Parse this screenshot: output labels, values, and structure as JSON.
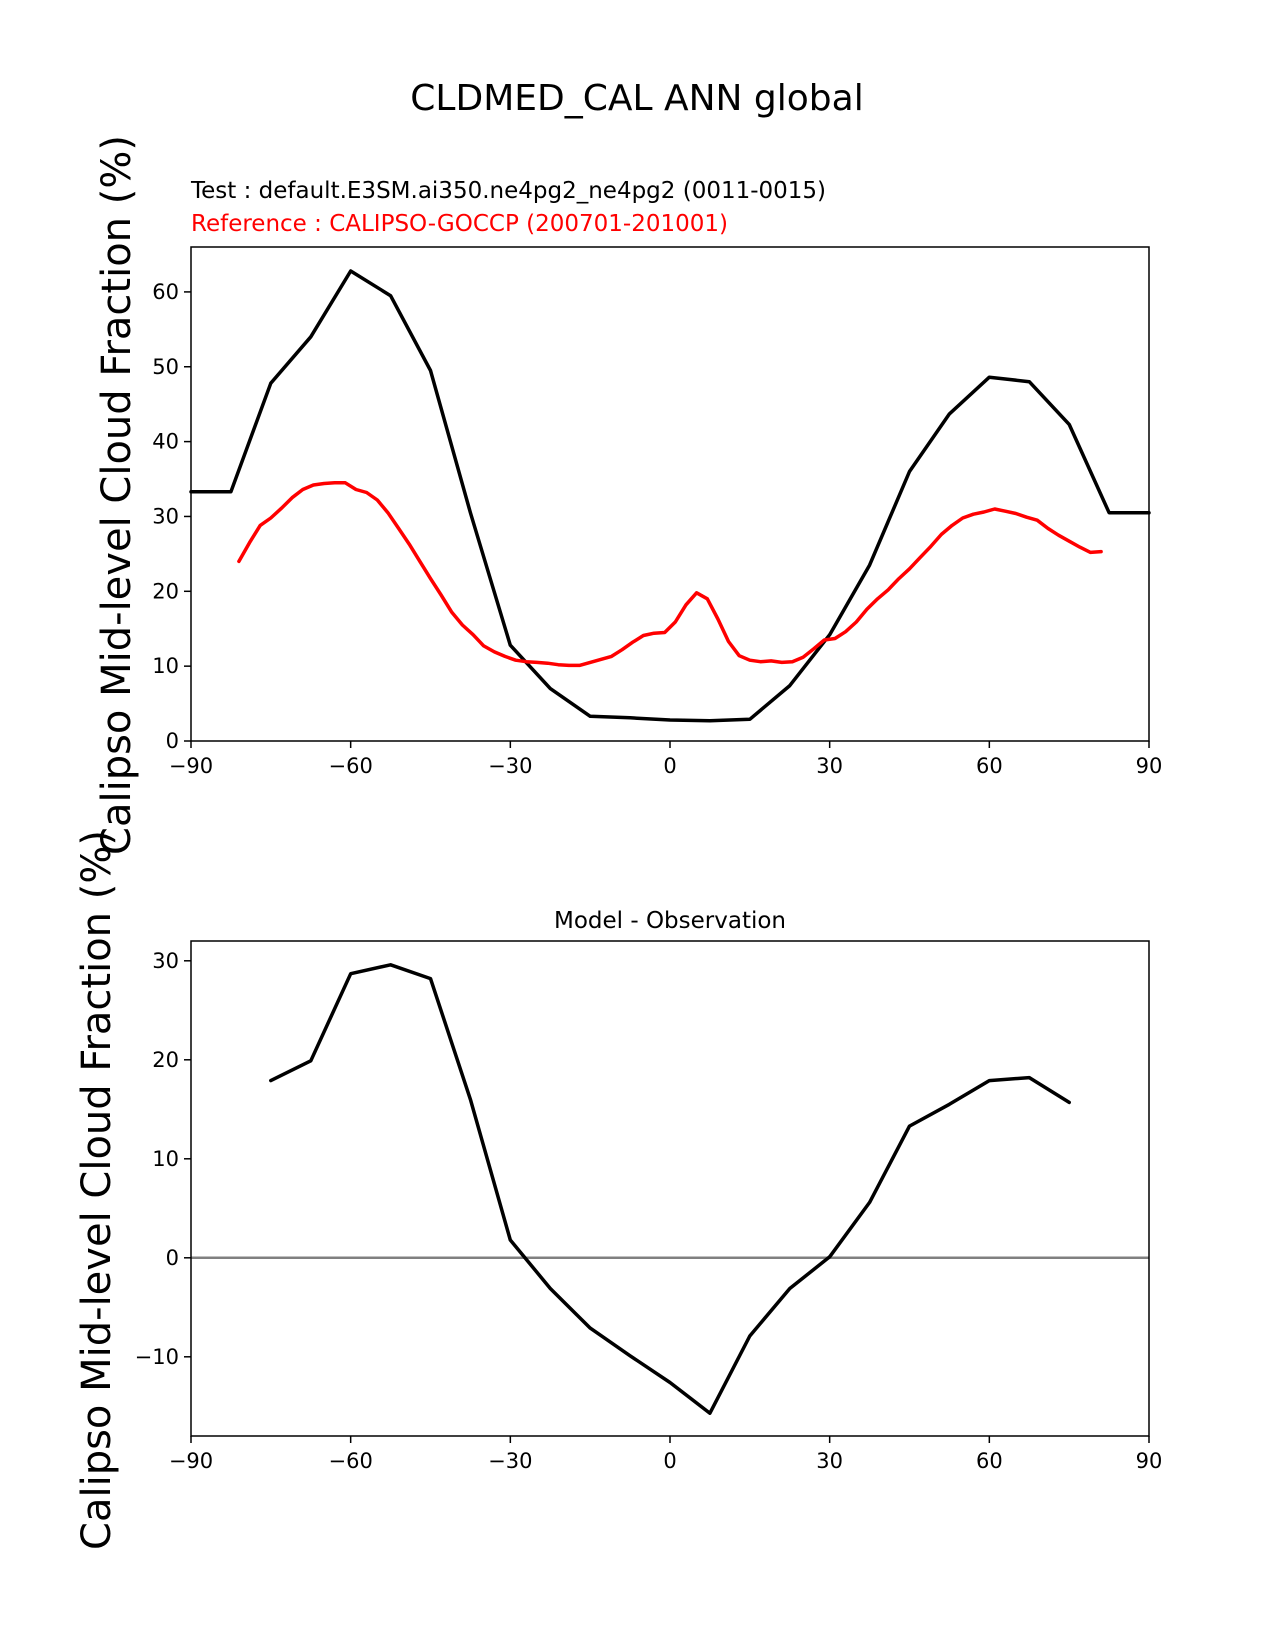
{
  "figure": {
    "title": "CLDMED_CAL ANN global"
  },
  "chart_data": [
    {
      "type": "line",
      "test_label": "Test : default.E3SM.ai350.ne4pg2_ne4pg2 (0011-0015)",
      "reference_label": "Reference : CALIPSO-GOCCP (200701-201001)",
      "title": "",
      "xlabel": "",
      "ylabel": "Calipso Mid-level Cloud Fraction (%)",
      "xlim": [
        -90,
        90
      ],
      "ylim": [
        0,
        66
      ],
      "xticks": [
        -90,
        -60,
        -30,
        0,
        30,
        60,
        90
      ],
      "xtick_labels": [
        "−90",
        "−60",
        "−30",
        "0",
        "30",
        "60",
        "90"
      ],
      "yticks": [
        0,
        10,
        20,
        30,
        40,
        50,
        60
      ],
      "ytick_labels": [
        "0",
        "10",
        "20",
        "30",
        "40",
        "50",
        "60"
      ],
      "grid": false,
      "series": [
        {
          "color": "#000000",
          "x": [
            -90,
            -82.5,
            -75,
            -67.5,
            -60,
            -52.5,
            -45,
            -37.5,
            -30,
            -22.5,
            -15,
            -7.5,
            0,
            7.5,
            15,
            22.5,
            30,
            37.5,
            45,
            52.5,
            60,
            67.5,
            75,
            82.5,
            90
          ],
          "y": [
            33.3,
            33.3,
            47.8,
            54.0,
            62.8,
            59.5,
            49.5,
            30.5,
            12.8,
            7.0,
            3.3,
            3.1,
            2.8,
            2.7,
            2.9,
            7.4,
            14.2,
            23.5,
            36.0,
            43.7,
            48.6,
            48.0,
            42.3,
            30.5,
            30.5
          ]
        },
        {
          "color": "#ff0000",
          "x": [
            -81,
            -79,
            -77,
            -75,
            -73,
            -71,
            -69,
            -67,
            -65,
            -63,
            -61,
            -59,
            -57,
            -55,
            -53,
            -51,
            -49,
            -47,
            -45,
            -43,
            -41,
            -39,
            -37,
            -35,
            -33,
            -31,
            -29,
            -27,
            -25,
            -23,
            -21,
            -19,
            -17,
            -15,
            -13,
            -11,
            -9,
            -7,
            -5,
            -3,
            -1,
            1,
            3,
            5,
            7,
            9,
            11,
            13,
            15,
            17,
            19,
            21,
            23,
            25,
            27,
            29,
            31,
            33,
            35,
            37,
            39,
            41,
            43,
            45,
            47,
            49,
            51,
            53,
            55,
            57,
            59,
            61,
            63,
            65,
            67,
            69,
            71,
            73,
            75,
            77,
            79,
            81
          ],
          "y": [
            24.0,
            26.5,
            28.8,
            29.8,
            31.1,
            32.5,
            33.6,
            34.2,
            34.4,
            34.5,
            34.5,
            33.6,
            33.2,
            32.2,
            30.5,
            28.4,
            26.3,
            24.0,
            21.7,
            19.5,
            17.2,
            15.5,
            14.2,
            12.7,
            11.9,
            11.3,
            10.8,
            10.6,
            10.5,
            10.4,
            10.2,
            10.1,
            10.1,
            10.5,
            10.9,
            11.3,
            12.2,
            13.2,
            14.1,
            14.4,
            14.5,
            15.9,
            18.2,
            19.8,
            19.0,
            16.3,
            13.3,
            11.4,
            10.8,
            10.6,
            10.7,
            10.5,
            10.6,
            11.2,
            12.3,
            13.5,
            13.7,
            14.6,
            15.9,
            17.6,
            19.0,
            20.2,
            21.7,
            23.0,
            24.5,
            26.0,
            27.6,
            28.8,
            29.8,
            30.3,
            30.6,
            31.0,
            30.7,
            30.4,
            29.9,
            29.5,
            28.4,
            27.5,
            26.7,
            25.9,
            25.2,
            25.3
          ]
        }
      ]
    },
    {
      "type": "line",
      "title": "Model - Observation",
      "xlabel": "",
      "ylabel": "Calipso Mid-level Cloud Fraction (%)",
      "xlim": [
        -90,
        90
      ],
      "ylim": [
        -18,
        32
      ],
      "xticks": [
        -90,
        -60,
        -30,
        0,
        30,
        60,
        90
      ],
      "xtick_labels": [
        "−90",
        "−60",
        "−30",
        "0",
        "30",
        "60",
        "90"
      ],
      "yticks": [
        -10,
        0,
        10,
        20,
        30
      ],
      "ytick_labels": [
        "−10",
        "0",
        "10",
        "20",
        "30"
      ],
      "grid": false,
      "zero_line_color": "#808080",
      "series": [
        {
          "color": "#000000",
          "x": [
            -75,
            -67.5,
            -60,
            -52.5,
            -45,
            -37.5,
            -30,
            -22.5,
            -15,
            -7.5,
            0,
            7.5,
            15,
            22.5,
            30,
            37.5,
            45,
            52.5,
            60,
            67.5,
            75
          ],
          "y": [
            17.9,
            19.9,
            28.7,
            29.6,
            28.2,
            16.0,
            1.8,
            -3.1,
            -7.1,
            -9.9,
            -12.6,
            -15.7,
            -7.9,
            -3.1,
            0.1,
            5.6,
            13.3,
            15.5,
            17.9,
            18.2,
            15.7
          ]
        }
      ]
    }
  ]
}
